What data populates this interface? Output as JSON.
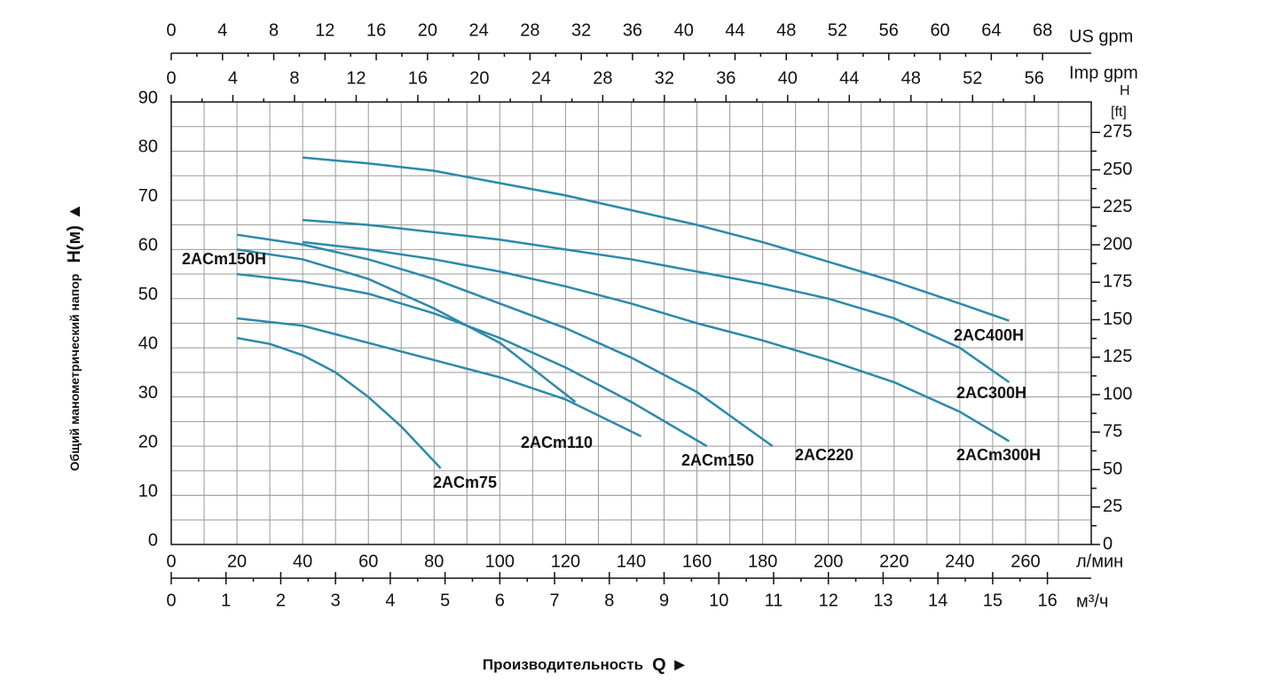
{
  "chart_data": {
    "type": "line",
    "ylabel": "Общий манометрический напор",
    "ylabel_symbol": "H(м) ▲",
    "xlabel": "Производительность",
    "xlabel_symbol": "Q ►",
    "xunit": "л/мин",
    "xlim": [
      0,
      280
    ],
    "xticks": [
      0,
      20,
      40,
      60,
      80,
      100,
      120,
      140,
      160,
      180,
      200,
      220,
      240,
      260
    ],
    "ylim": [
      0,
      90
    ],
    "yticks": [
      0,
      10,
      20,
      30,
      40,
      50,
      60,
      70,
      80,
      90
    ],
    "y2label": "H",
    "y2unit": "[ft]",
    "y2lim": [
      0,
      295.3
    ],
    "y2ticks": [
      0,
      25,
      50,
      75,
      100,
      125,
      150,
      175,
      200,
      225,
      250,
      275
    ],
    "secondary_x_axes": [
      {
        "label": "м³/ч",
        "lim": [
          0,
          16.8
        ],
        "ticks": [
          0,
          1,
          2,
          3,
          4,
          5,
          6,
          7,
          8,
          9,
          10,
          11,
          12,
          13,
          14,
          15,
          16
        ]
      },
      {
        "label": "US gpm",
        "lim": [
          0,
          71.8
        ],
        "ticks": [
          0,
          4,
          8,
          12,
          16,
          20,
          24,
          28,
          32,
          36,
          40,
          44,
          48,
          52,
          56,
          60,
          64,
          68
        ]
      },
      {
        "label": "Imp gpm",
        "lim": [
          0,
          59.7
        ],
        "ticks": [
          0,
          4,
          8,
          12,
          16,
          20,
          24,
          28,
          32,
          36,
          40,
          44,
          48,
          52,
          56
        ]
      }
    ],
    "grid": true,
    "series": [
      {
        "name": "2ACm75",
        "color": "#2a8aab",
        "x": [
          20,
          30,
          40,
          50,
          60,
          70,
          82
        ],
        "values": [
          42,
          40.8,
          38.5,
          35,
          30,
          24,
          15.5
        ]
      },
      {
        "name": "2ACm110",
        "color": "#2a8aab",
        "x": [
          20,
          40,
          60,
          80,
          100,
          120,
          143
        ],
        "values": [
          46,
          44.5,
          41,
          37.5,
          34,
          29.5,
          22
        ]
      },
      {
        "name": "2ACm150H",
        "color": "#2a8aab",
        "x": [
          20,
          40,
          60,
          80,
          100,
          123
        ],
        "values": [
          60,
          58,
          54,
          48,
          41,
          29
        ]
      },
      {
        "name": "2ACm150",
        "color": "#2a8aab",
        "x": [
          20,
          40,
          60,
          80,
          100,
          120,
          140,
          163
        ],
        "values": [
          55,
          53.5,
          51,
          47,
          42,
          36,
          29,
          20
        ]
      },
      {
        "name": "2AC220",
        "color": "#2a8aab",
        "x": [
          20,
          40,
          60,
          80,
          100,
          120,
          140,
          160,
          183
        ],
        "values": [
          63,
          61,
          58,
          54,
          49,
          44,
          38,
          31,
          20
        ]
      },
      {
        "name": "2ACm300H",
        "color": "#2a8aab",
        "x": [
          40,
          60,
          80,
          100,
          120,
          140,
          160,
          180,
          200,
          220,
          240,
          255
        ],
        "values": [
          61.5,
          60,
          58,
          55.5,
          52.5,
          49,
          45,
          41.5,
          37.5,
          33,
          27,
          21
        ]
      },
      {
        "name": "2AC300H",
        "color": "#2a8aab",
        "x": [
          40,
          60,
          80,
          100,
          120,
          140,
          160,
          180,
          200,
          220,
          240,
          255
        ],
        "values": [
          66,
          65,
          63.5,
          62,
          60,
          58,
          55.5,
          53,
          50,
          46,
          40,
          33
        ]
      },
      {
        "name": "2AC400H",
        "color": "#2a8aab",
        "x": [
          40,
          60,
          80,
          100,
          120,
          140,
          160,
          180,
          200,
          220,
          240,
          255
        ],
        "values": [
          78.7,
          77.5,
          76,
          73.5,
          71,
          68,
          65,
          61.5,
          57.5,
          53.5,
          49,
          45.5
        ]
      }
    ]
  }
}
